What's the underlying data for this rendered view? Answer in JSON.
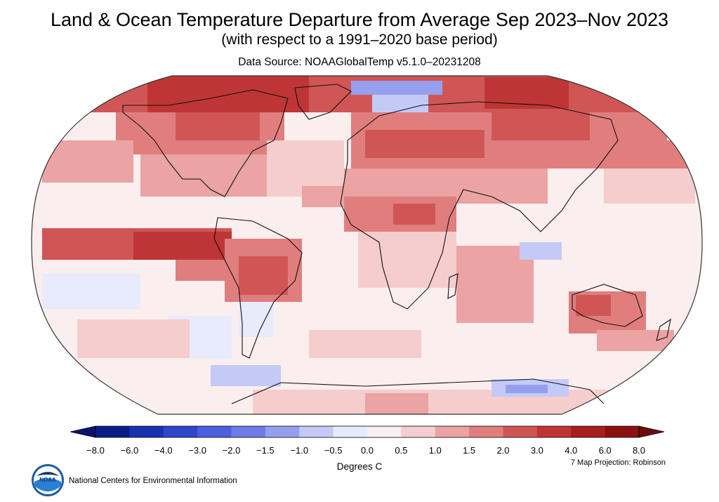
{
  "title": "Land & Ocean Temperature Departure from Average Sep 2023–Nov 2023",
  "subtitle": "(with respect to a 1991–2020 base period)",
  "source": "Data Source: NOAAGlobalTemp v5.1.0–20231208",
  "colorbar": {
    "units": "Degrees C",
    "ticks": [
      "−8.0",
      "−6.0",
      "−4.0",
      "−3.0",
      "−2.0",
      "−1.5",
      "−1.0",
      "−0.5",
      "0.0",
      "0.5",
      "1.0",
      "1.5",
      "2.0",
      "3.0",
      "4.0",
      "6.0",
      "8.0"
    ],
    "colors": [
      "#0b1c86",
      "#1a30b0",
      "#2f46cc",
      "#4c5fdc",
      "#6d7ce6",
      "#969fee",
      "#c4caf6",
      "#e8ebfb",
      "#fbeeee",
      "#f5cdcd",
      "#eba3a3",
      "#e07e7e",
      "#d05656",
      "#bf3535",
      "#a81e1e",
      "#8b1111"
    ],
    "end_low": "#0a1470",
    "end_high": "#6b0d0d"
  },
  "projection_note": "7 Map Projection: Robinson",
  "org": "National Centers for Environmental Information",
  "logo_text": "NOAA",
  "map_colors": {
    "warm1": "#f5cdcd",
    "warm2": "#eba3a3",
    "warm3": "#e07e7e",
    "warm4": "#d05656",
    "warm5": "#bf3535",
    "cool1": "#e8ebfb",
    "cool2": "#c4caf6",
    "cool3": "#969fee",
    "neutral": "#fbeeee",
    "coast": "#111111"
  }
}
